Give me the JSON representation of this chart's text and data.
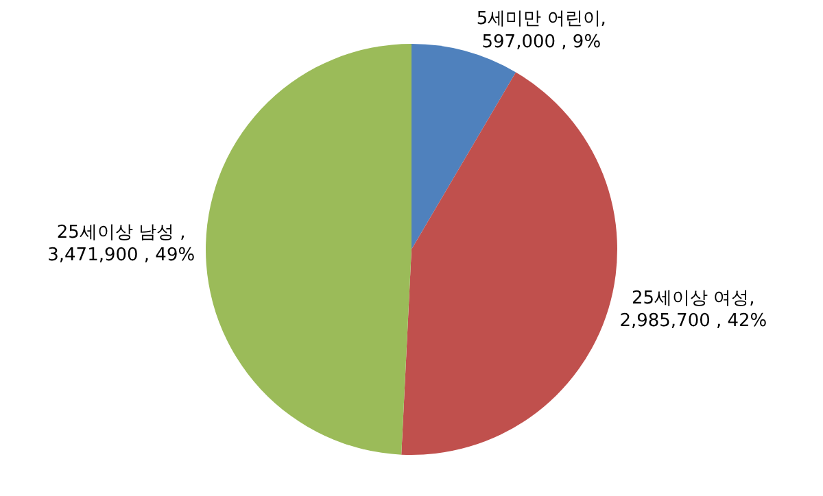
{
  "chart_data": {
    "type": "pie",
    "categories": [
      "5세미만 어린이",
      "25세이상 여성",
      "25세이상 남성"
    ],
    "values": [
      597000,
      2985700,
      3471900
    ],
    "value_labels": [
      ",\n597,000 , 9%",
      ",\n2,985,700 , 42%",
      " ,\n3,471,900 , 49%"
    ],
    "colors": [
      "#4f81bd",
      "#c0504d",
      "#9bbb59"
    ],
    "legend": false
  }
}
